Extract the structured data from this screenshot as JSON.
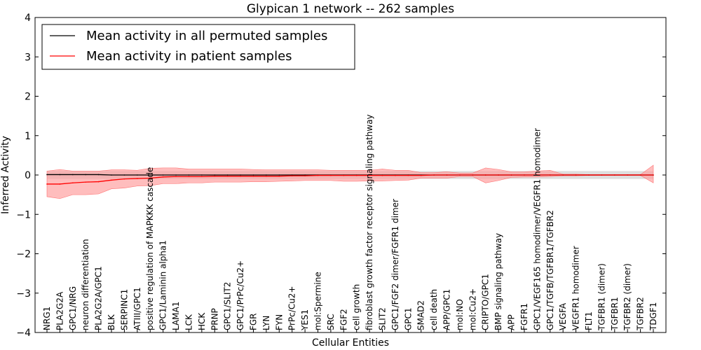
{
  "chart_data": {
    "type": "line",
    "title": "Glypican 1 network -- 262 samples",
    "xlabel": "Cellular Entities",
    "ylabel": "Inferred Activity",
    "ylim": [
      -4,
      4
    ],
    "yticks": [
      4,
      3,
      2,
      1,
      0,
      -1,
      -2,
      -3,
      -4
    ],
    "ytick_labels": [
      "4",
      "3",
      "2",
      "1",
      "0",
      "−1",
      "−2",
      "−3",
      "−4"
    ],
    "legend_position": "top-left",
    "grid": false,
    "categories": [
      "NRG1",
      "PLA2G2A",
      "GPC1/NRG",
      "neuron differentiation",
      "PLA2G2A/GPC1",
      "BLK",
      "SERPINC1",
      "ATIII/GPC1",
      "positive regulation of MAPKKK cascade",
      "GPC1/Laminin alpha1",
      "LAMA1",
      "LCK",
      "HCK",
      "PRNP",
      "GPC1/SLIT2",
      "GPC1/PrPc/Cu2+",
      "FGR",
      "LYN",
      "FYN",
      "PrPc/Cu2+",
      "YES1",
      "mol:Spermine",
      "SRC",
      "FGF2",
      "cell growth",
      "fibroblast growth factor receptor signaling pathway",
      "SLIT2",
      "GPC1/FGF2 dimer/FGFR1 dimer",
      "GPC1",
      "SMAD2",
      "cell death",
      "APP/GPC1",
      "mol:NO",
      "mol:Cu2+",
      "CRIPTO/GPC1",
      "BMP signaling pathway",
      "APP",
      "FGFR1",
      "GPC1/VEGF165 homodimer/VEGFR1 homodimer",
      "GPC1/TGFB/TGFBR1/TGFBR2",
      "VEGFA",
      "VEGFR1 homodimer",
      "FLT1",
      "TGFBR1 (dimer)",
      "TGFBR1",
      "TGFBR2 (dimer)",
      "TGFBR2",
      "TDGF1"
    ],
    "series": [
      {
        "name": "Mean activity in all permuted samples",
        "color": "#000000",
        "band_color": "#c8c8c8",
        "values": [
          0.01,
          0.01,
          0.01,
          0.01,
          0.01,
          0.0,
          0.0,
          0.0,
          0.0,
          0.0,
          0.0,
          0.0,
          0.0,
          0.0,
          0.0,
          0.0,
          0.0,
          0.0,
          0.0,
          0.0,
          0.0,
          0.0,
          0.0,
          0.0,
          0.0,
          0.0,
          0.0,
          0.0,
          0.0,
          0.0,
          0.0,
          0.0,
          0.0,
          0.0,
          0.0,
          0.0,
          0.0,
          0.0,
          0.0,
          0.0,
          0.0,
          0.0,
          0.0,
          0.0,
          0.0,
          0.0,
          0.0,
          0.0
        ],
        "lower": [
          -0.1,
          -0.1,
          -0.1,
          -0.1,
          -0.1,
          -0.1,
          -0.1,
          -0.1,
          -0.1,
          -0.1,
          -0.1,
          -0.1,
          -0.1,
          -0.1,
          -0.1,
          -0.1,
          -0.1,
          -0.1,
          -0.1,
          -0.1,
          -0.1,
          -0.1,
          -0.1,
          -0.1,
          -0.1,
          -0.1,
          -0.1,
          -0.1,
          -0.1,
          -0.1,
          -0.1,
          -0.1,
          -0.1,
          -0.1,
          -0.1,
          -0.1,
          -0.1,
          -0.1,
          -0.1,
          -0.1,
          -0.1,
          -0.1,
          -0.1,
          -0.1,
          -0.1,
          -0.1,
          -0.1,
          -0.1
        ],
        "upper": [
          0.1,
          0.1,
          0.1,
          0.1,
          0.1,
          0.1,
          0.1,
          0.1,
          0.1,
          0.1,
          0.1,
          0.1,
          0.1,
          0.1,
          0.1,
          0.1,
          0.1,
          0.1,
          0.1,
          0.1,
          0.1,
          0.1,
          0.1,
          0.1,
          0.1,
          0.1,
          0.1,
          0.1,
          0.1,
          0.1,
          0.1,
          0.1,
          0.1,
          0.1,
          0.1,
          0.1,
          0.1,
          0.1,
          0.1,
          0.1,
          0.1,
          0.1,
          0.1,
          0.1,
          0.1,
          0.1,
          0.1,
          0.1
        ]
      },
      {
        "name": "Mean activity in patient samples",
        "color": "#ff0000",
        "band_color": "#ff9999",
        "values": [
          -0.23,
          -0.23,
          -0.2,
          -0.18,
          -0.17,
          -0.13,
          -0.1,
          -0.09,
          -0.08,
          -0.05,
          -0.04,
          -0.04,
          -0.04,
          -0.03,
          -0.03,
          -0.03,
          -0.03,
          -0.03,
          -0.03,
          -0.02,
          -0.02,
          -0.01,
          -0.01,
          -0.01,
          -0.01,
          -0.01,
          -0.01,
          -0.01,
          -0.01,
          -0.01,
          0.0,
          0.0,
          0.0,
          0.0,
          0.0,
          0.0,
          0.0,
          0.0,
          0.0,
          0.0,
          0.0,
          0.0,
          0.0,
          0.0,
          0.0,
          0.0,
          0.0,
          0.0
        ],
        "lower": [
          -0.55,
          -0.6,
          -0.5,
          -0.5,
          -0.48,
          -0.35,
          -0.33,
          -0.28,
          -0.27,
          -0.22,
          -0.22,
          -0.2,
          -0.2,
          -0.18,
          -0.18,
          -0.18,
          -0.17,
          -0.17,
          -0.16,
          -0.15,
          -0.14,
          -0.14,
          -0.14,
          -0.16,
          -0.16,
          -0.15,
          -0.15,
          -0.14,
          -0.13,
          -0.08,
          -0.08,
          -0.08,
          -0.04,
          -0.04,
          -0.2,
          -0.14,
          -0.06,
          -0.05,
          -0.05,
          -0.04,
          -0.02,
          -0.02,
          -0.01,
          -0.01,
          -0.01,
          -0.01,
          -0.01,
          -0.2
        ],
        "upper": [
          0.1,
          0.14,
          0.1,
          0.1,
          0.1,
          0.13,
          0.13,
          0.12,
          0.17,
          0.18,
          0.18,
          0.15,
          0.15,
          0.15,
          0.15,
          0.15,
          0.14,
          0.13,
          0.13,
          0.13,
          0.13,
          0.13,
          0.12,
          0.12,
          0.12,
          0.12,
          0.15,
          0.12,
          0.12,
          0.06,
          0.06,
          0.08,
          0.05,
          0.05,
          0.18,
          0.14,
          0.08,
          0.08,
          0.1,
          0.12,
          0.02,
          0.02,
          0.01,
          0.01,
          0.01,
          0.01,
          0.01,
          0.25
        ]
      }
    ]
  }
}
